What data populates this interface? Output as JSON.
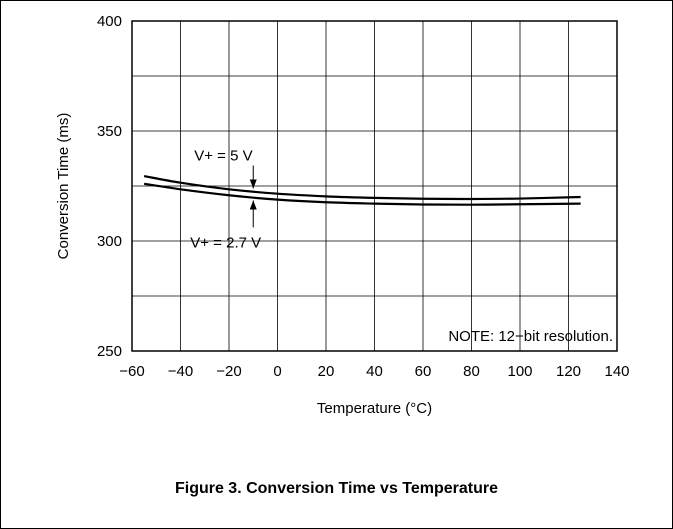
{
  "chart_data": {
    "type": "line",
    "xlabel": "Temperature (°C)",
    "ylabel": "Conversion Time (ms)",
    "xlim": [
      -60,
      140
    ],
    "ylim": [
      250,
      400
    ],
    "xticks": [
      "−60",
      "−40",
      "−20",
      "0",
      "20",
      "40",
      "60",
      "80",
      "100",
      "120",
      "140"
    ],
    "yticks": [
      "250",
      "300",
      "350",
      "400"
    ],
    "grid": true,
    "series": [
      {
        "name": "V+ = 5 V",
        "x": [
          -55,
          -40,
          -20,
          0,
          20,
          40,
          60,
          80,
          100,
          125
        ],
        "y": [
          329.5,
          326.5,
          323.5,
          321.5,
          320.3,
          319.6,
          319.2,
          319.1,
          319.3,
          320
        ]
      },
      {
        "name": "V+ = 2.7 V",
        "x": [
          -55,
          -40,
          -20,
          0,
          20,
          40,
          60,
          80,
          100,
          125
        ],
        "y": [
          326,
          323.5,
          320.8,
          318.8,
          317.6,
          317,
          316.6,
          316.5,
          316.7,
          317
        ]
      }
    ],
    "annotations": [
      {
        "text": "V+ = 5 V"
      },
      {
        "text": "V+ = 2.7 V"
      },
      {
        "text": "NOTE: 12−bit resolution."
      }
    ]
  },
  "caption": "Figure 3. Conversion Time vs Temperature"
}
